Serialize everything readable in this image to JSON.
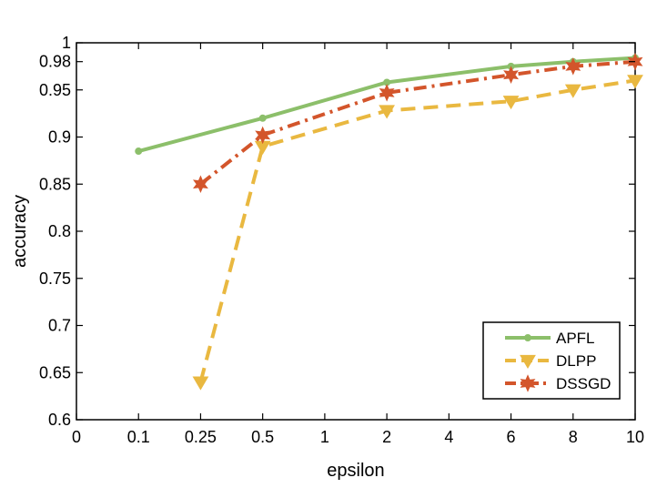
{
  "chart_data": {
    "type": "line",
    "title": "",
    "xlabel": "epsilon",
    "ylabel": "accuracy",
    "x_axis_scale": "categorical, evenly spaced ticks",
    "categories": [
      "0",
      "0.1",
      "0.25",
      "0.5",
      "1",
      "2",
      "4",
      "6",
      "8",
      "10"
    ],
    "y_ticks": [
      0.6,
      0.65,
      0.7,
      0.75,
      0.8,
      0.85,
      0.9,
      0.95,
      0.98,
      1
    ],
    "y_tick_labels": [
      "0.6",
      "0.65",
      "0.7",
      "0.75",
      "0.8",
      "0.85",
      "0.9",
      "0.95",
      "0.98",
      "1"
    ],
    "ylim": [
      0.6,
      1.0
    ],
    "grid": false,
    "legend_position": "bottom-right",
    "series": [
      {
        "name": "APFL",
        "color": "#8CBF6A",
        "line_style": "solid",
        "marker": "dot",
        "points": [
          {
            "x": "0.1",
            "y": 0.885
          },
          {
            "x": "0.5",
            "y": 0.92
          },
          {
            "x": "2",
            "y": 0.958
          },
          {
            "x": "6",
            "y": 0.975
          },
          {
            "x": "8",
            "y": 0.98
          },
          {
            "x": "10",
            "y": 0.984
          }
        ]
      },
      {
        "name": "DLPP",
        "color": "#E9B840",
        "line_style": "dashed",
        "marker": "triangle-down",
        "points": [
          {
            "x": "0.25",
            "y": 0.64
          },
          {
            "x": "0.5",
            "y": 0.89
          },
          {
            "x": "2",
            "y": 0.928
          },
          {
            "x": "6",
            "y": 0.938
          },
          {
            "x": "8",
            "y": 0.95
          },
          {
            "x": "10",
            "y": 0.96
          }
        ]
      },
      {
        "name": "DSSGD",
        "color": "#D3552B",
        "line_style": "dash-dot",
        "marker": "hexagram",
        "points": [
          {
            "x": "0.25",
            "y": 0.85
          },
          {
            "x": "0.5",
            "y": 0.902
          },
          {
            "x": "2",
            "y": 0.947
          },
          {
            "x": "6",
            "y": 0.966
          },
          {
            "x": "8",
            "y": 0.975
          },
          {
            "x": "10",
            "y": 0.98
          }
        ]
      }
    ]
  }
}
